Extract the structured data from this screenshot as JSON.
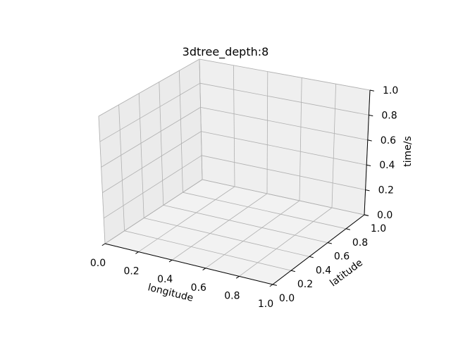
{
  "chart_data": {
    "type": "scatter",
    "projection": "3d",
    "title": "3dtree_depth:8",
    "xlabel": "longitude",
    "ylabel": "latitude",
    "zlabel": "time/s",
    "xlim": [
      0.0,
      1.0
    ],
    "ylim": [
      0.0,
      1.0
    ],
    "zlim": [
      0.0,
      1.0
    ],
    "x_ticks": [
      "0.0",
      "0.2",
      "0.4",
      "0.6",
      "0.8",
      "1.0"
    ],
    "y_ticks": [
      "0.0",
      "0.2",
      "0.4",
      "0.6",
      "0.8",
      "1.0"
    ],
    "z_ticks": [
      "0.0",
      "0.2",
      "0.4",
      "0.6",
      "0.8",
      "1.0"
    ],
    "grid": true,
    "series": [],
    "colors": {
      "pane_floor": "#f2f2f2",
      "pane_left": "#ebebeb",
      "pane_back": "#efefef",
      "grid": "#b0b0b0",
      "pane_edge": "#d9d9d9",
      "axis_line": "#000000"
    }
  }
}
